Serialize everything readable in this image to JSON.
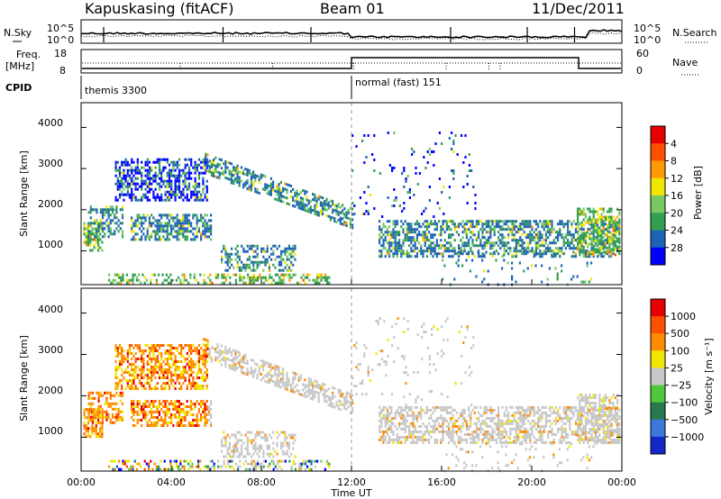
{
  "header": {
    "station": "Kapuskasing (fitACF)",
    "beam": "Beam 01",
    "date": "11/Dec/2011"
  },
  "noise_panel": {
    "left_label": "N.Sky",
    "right_label": "N.Search",
    "left_ticks": [
      "10^5",
      "10^0"
    ],
    "right_ticks": [
      "10^5",
      "10^0"
    ]
  },
  "freq_panel": {
    "left_label_1": "Freq.",
    "left_label_2": "[MHz]",
    "left_ticks": [
      "18",
      "8"
    ],
    "right_label": "Nave",
    "right_ticks": [
      "60",
      "0"
    ]
  },
  "cpid_panel": {
    "label": "CPID",
    "modes": [
      {
        "text": "themis 3300",
        "start_hour": 0,
        "end_hour": 12
      },
      {
        "text": "normal (fast) 151",
        "start_hour": 12,
        "end_hour": 24
      }
    ]
  },
  "chart_data": [
    {
      "type": "heatmap",
      "name": "power",
      "ylabel": "Slant Range [km]",
      "xlim": [
        0,
        24
      ],
      "ylim": [
        180,
        4600
      ],
      "yticks": [
        "1000",
        "2000",
        "3000",
        "4000"
      ],
      "colorbar": {
        "label": "Power [dB]",
        "ticks": [
          "4",
          "8",
          "12",
          "16",
          "20",
          "24",
          "28"
        ],
        "colors": [
          "#0000ff",
          "#1e64b4",
          "#32a050",
          "#78c864",
          "#f0e600",
          "#ff9b00",
          "#ff5000",
          "#e60000"
        ]
      }
    },
    {
      "type": "heatmap",
      "name": "velocity",
      "ylabel": "Slant Range [km]",
      "xlabel": "Time UT",
      "xlim": [
        0,
        24
      ],
      "ylim": [
        180,
        4600
      ],
      "yticks": [
        "1000",
        "2000",
        "3000",
        "4000"
      ],
      "xticks": [
        "00:00",
        "04:00",
        "08:00",
        "12:00",
        "16:00",
        "20:00",
        "00:00"
      ],
      "colorbar": {
        "label": "Velocity [m s⁻¹]",
        "ticks": [
          "1000",
          "500",
          "100",
          "25",
          "−25",
          "−100",
          "−500",
          "−1000"
        ],
        "colors": [
          "#1428c8",
          "#3c78dc",
          "#287850",
          "#50c83c",
          "#c8c8c8",
          "#f0e600",
          "#ff8c00",
          "#ff5000",
          "#e60000"
        ]
      }
    }
  ]
}
